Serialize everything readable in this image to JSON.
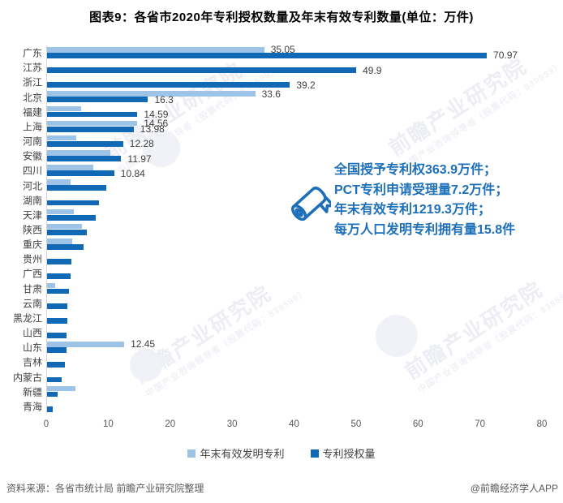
{
  "title": "图表9：各省市2020年专利授权数量及年末有效专利数量(单位：万件)",
  "chart_data": {
    "type": "bar",
    "orientation": "horizontal",
    "title": "图表9：各省市2020年专利授权数量及年末有效专利数量(单位：万件)",
    "unit": "万件",
    "xlim": [
      0,
      80
    ],
    "x_ticks": [
      0,
      10,
      20,
      30,
      40,
      50,
      60,
      70,
      80
    ],
    "grid": false,
    "legend_position": "bottom",
    "series_meta": [
      {
        "name": "年末有效发明专利",
        "color": "#9DC3E6"
      },
      {
        "name": "专利授权量",
        "color": "#1168B4"
      }
    ],
    "rows": [
      {
        "name": "广东",
        "valid": 35.05,
        "granted": 70.97,
        "valid_label": "35.05",
        "granted_label": "70.97"
      },
      {
        "name": "江苏",
        "valid": null,
        "granted": 49.9,
        "granted_label": "49.9"
      },
      {
        "name": "浙江",
        "valid": null,
        "granted": 39.2,
        "granted_label": "39.2"
      },
      {
        "name": "北京",
        "valid": 33.6,
        "granted": 16.3,
        "valid_label": "33.6",
        "granted_label": "16.3"
      },
      {
        "name": "福建",
        "valid": 5.5,
        "granted": 14.59,
        "granted_label": "14.59"
      },
      {
        "name": "上海",
        "valid": 14.56,
        "granted": 13.98,
        "valid_label": "14.56",
        "granted_label": "13.98"
      },
      {
        "name": "河南",
        "valid": 4.7,
        "granted": 12.28,
        "granted_label": "12.28"
      },
      {
        "name": "安徽",
        "valid": 10.2,
        "granted": 11.97,
        "granted_label": "11.97"
      },
      {
        "name": "四川",
        "valid": 7.4,
        "granted": 10.84,
        "granted_label": "10.84"
      },
      {
        "name": "河北",
        "valid": 3.8,
        "granted": 9.6
      },
      {
        "name": "湖南",
        "valid": null,
        "granted": 8.4
      },
      {
        "name": "天津",
        "valid": 4.3,
        "granted": 7.9
      },
      {
        "name": "陕西",
        "valid": 5.6,
        "granted": 6.4
      },
      {
        "name": "重庆",
        "valid": 4.0,
        "granted": 5.9
      },
      {
        "name": "贵州",
        "valid": null,
        "granted": 3.9
      },
      {
        "name": "广西",
        "valid": null,
        "granted": 3.85
      },
      {
        "name": "甘肃",
        "valid": 1.3,
        "granted": 3.6
      },
      {
        "name": "云南",
        "valid": null,
        "granted": 3.3
      },
      {
        "name": "黑龙江",
        "valid": null,
        "granted": 3.3
      },
      {
        "name": "山西",
        "valid": null,
        "granted": 3.2
      },
      {
        "name": "山东",
        "valid": 12.45,
        "granted": 3.1,
        "valid_label": "12.45"
      },
      {
        "name": "吉林",
        "valid": null,
        "granted": 2.9
      },
      {
        "name": "内蒙古",
        "valid": null,
        "granted": 2.4
      },
      {
        "name": "新疆",
        "valid": 4.6,
        "granted": 1.7
      },
      {
        "name": "青海",
        "valid": null,
        "granted": 0.9
      }
    ]
  },
  "annotation": {
    "icon": "diploma-icon",
    "lines": [
      "全国授予专利权363.9万件；",
      "PCT专利申请受理量7.2万件；",
      "年末有效专利1219.3万件；",
      "每万人口发明专利拥有量15.8件"
    ]
  },
  "legend": [
    {
      "label": "年末有效发明专利",
      "color": "#9DC3E6"
    },
    {
      "label": "专利授权量",
      "color": "#1168B4"
    }
  ],
  "footer": {
    "source": "资料来源：各省市统计局 前瞻产业研究院整理",
    "credit": "@前瞻经济学人APP"
  },
  "watermark": {
    "text": "前瞻产业研究院",
    "subtext": "中国产业咨询领导者（股票代码：839599）"
  },
  "colors": {
    "light_series": "#9DC3E6",
    "dark_series": "#1168B4",
    "annotation_text": "#1C6FB8",
    "axis_text": "#595959",
    "label_text": "#3F3F3F"
  }
}
